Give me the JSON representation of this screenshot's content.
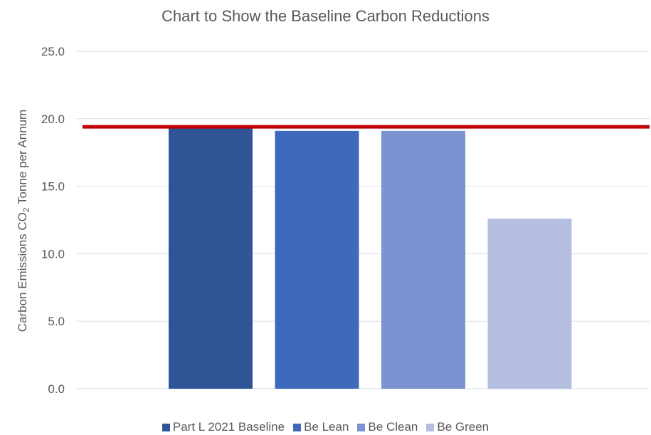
{
  "chart_data": {
    "type": "bar",
    "title": "Chart to Show the Baseline Carbon Reductions",
    "ylabel": {
      "main": "Carbon Emissions CO",
      "sub": "2",
      "rest": " Tonne per Annum"
    },
    "xlabel": "",
    "ylim": [
      0,
      25
    ],
    "yticks": [
      "0.0",
      "5.0",
      "10.0",
      "15.0",
      "20.0",
      "25.0"
    ],
    "grid": true,
    "legend_position": "bottom",
    "series": [
      {
        "name": "Part L 2021 Baseline",
        "values": [
          19.4
        ],
        "color": "#2f5597"
      },
      {
        "name": "Be Lean",
        "values": [
          19.1
        ],
        "color": "#3f6abb"
      },
      {
        "name": "Be Clean",
        "values": [
          19.1
        ],
        "color": "#7b93d0"
      },
      {
        "name": "Be Green",
        "values": [
          12.6
        ],
        "color": "#b4bfdf"
      }
    ],
    "reference_line": {
      "value": 19.4,
      "color": "#c00000"
    }
  }
}
